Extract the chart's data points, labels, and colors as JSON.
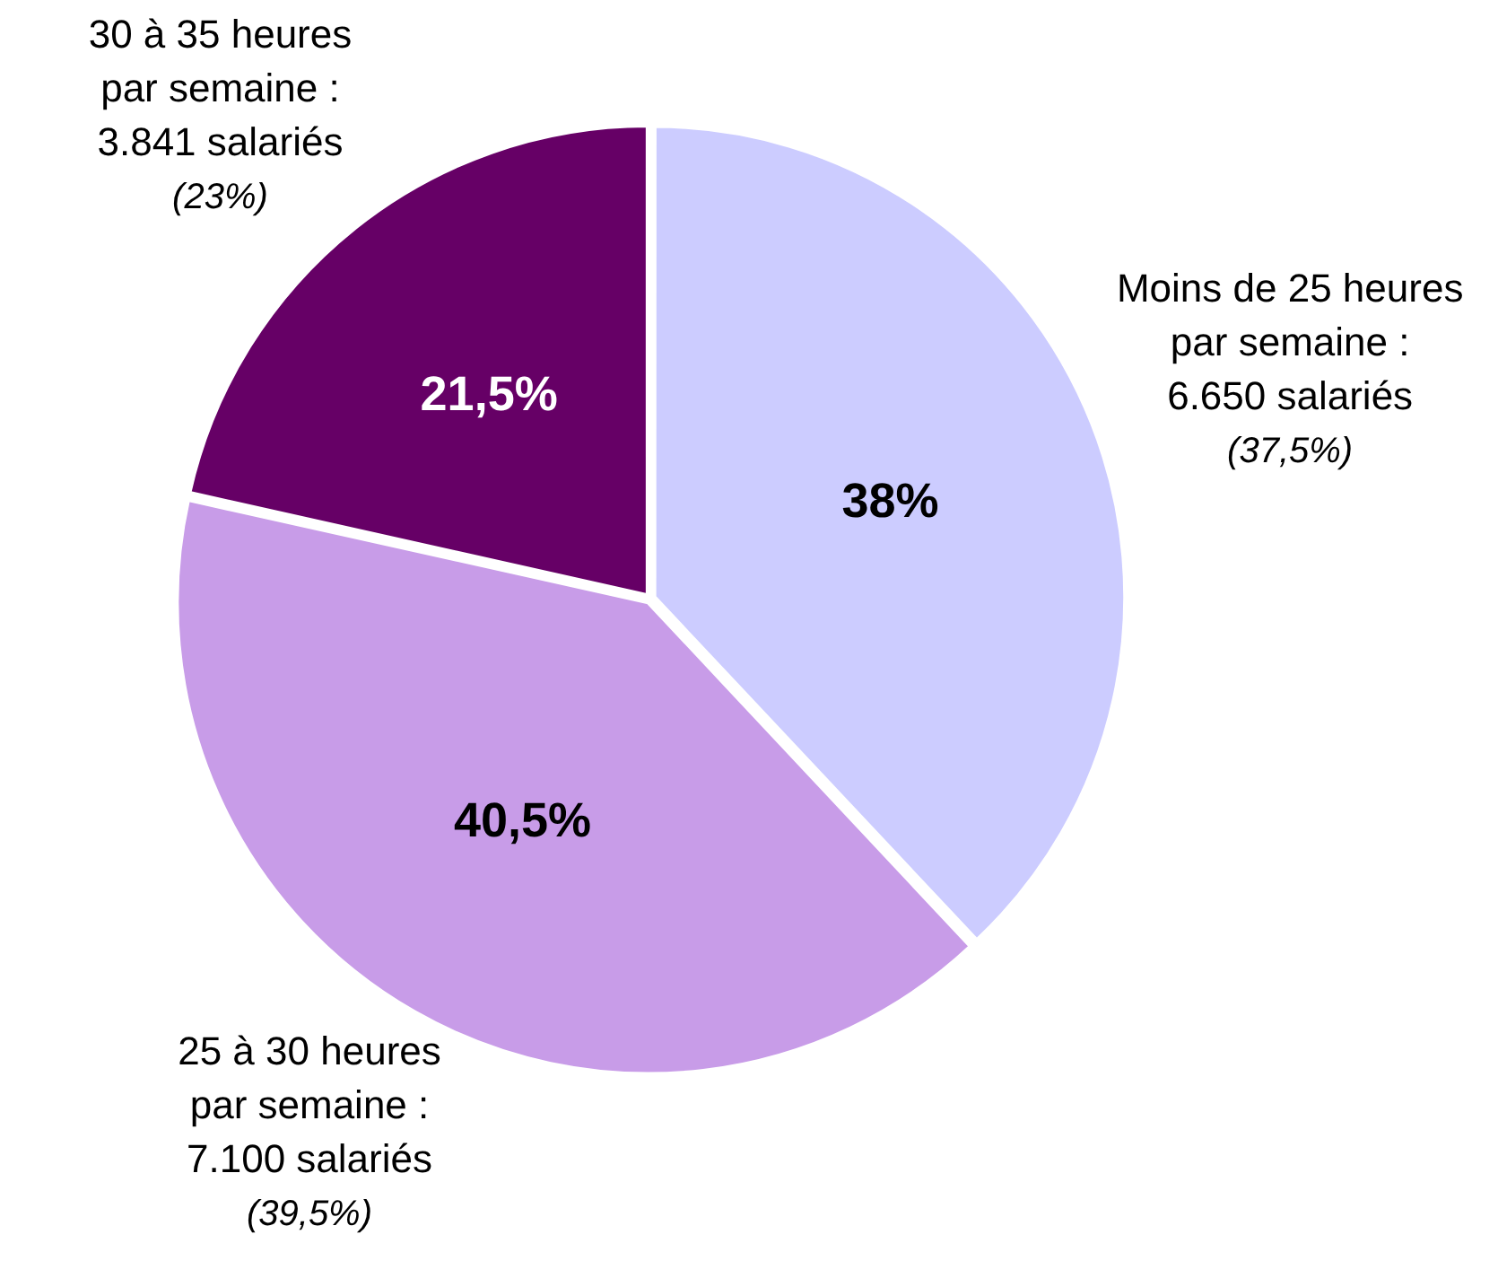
{
  "chart_data": {
    "type": "pie",
    "categories": [
      "Moins de 25 heures\npar semaine :\n6.650 salariés",
      "25 à 30 heures\npar semaine :\n7.100 salariés",
      "30 à 35 heures\npar semaine :\n3.841 salariés"
    ],
    "values": [
      38,
      40.5,
      21.5
    ],
    "colors": [
      "#ccccff",
      "#c89ce8",
      "#660066"
    ],
    "value_labels": [
      "38%",
      "40,5%",
      "21,5%"
    ],
    "annotations": [
      "(37,5%)",
      "(39,5%)",
      "(23%)"
    ],
    "legend": false
  }
}
